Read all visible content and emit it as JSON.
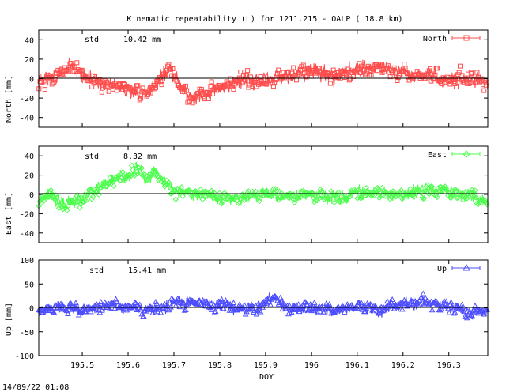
{
  "title": "Kinematic repeatability (L) for 1211.215 - OALP  ( 18.8 km)",
  "timestamp": "14/09/22 01:08",
  "chart_data": [
    {
      "type": "scatter",
      "name": "North",
      "ylabel": "North [mm]",
      "legend": "North",
      "legend_position": "top-right",
      "std_label": "std",
      "std_value": "10.42 mm",
      "color": "#ff4d4d",
      "marker": "square",
      "xlim": [
        195.405,
        196.385
      ],
      "ylim": [
        -50,
        50
      ],
      "yticks": [
        -40,
        -20,
        0,
        20,
        40
      ],
      "std": 10.42,
      "seed": 11,
      "trend": [
        [
          195.405,
          -2
        ],
        [
          195.45,
          5
        ],
        [
          195.48,
          14
        ],
        [
          195.5,
          2
        ],
        [
          195.55,
          -6
        ],
        [
          195.6,
          -12
        ],
        [
          195.63,
          -18
        ],
        [
          195.66,
          -4
        ],
        [
          195.69,
          10
        ],
        [
          195.72,
          -12
        ],
        [
          195.75,
          -20
        ],
        [
          195.8,
          -8
        ],
        [
          195.85,
          0
        ],
        [
          195.9,
          -3
        ],
        [
          195.95,
          5
        ],
        [
          196.0,
          8
        ],
        [
          196.05,
          3
        ],
        [
          196.1,
          10
        ],
        [
          196.15,
          13
        ],
        [
          196.2,
          6
        ],
        [
          196.25,
          4
        ],
        [
          196.3,
          -2
        ],
        [
          196.35,
          2
        ],
        [
          196.385,
          -3
        ]
      ]
    },
    {
      "type": "scatter",
      "name": "East",
      "ylabel": "East [mm]",
      "legend": "East",
      "legend_position": "top-right",
      "std_label": "std",
      "std_value": "8.32 mm",
      "color": "#4dff4d",
      "marker": "diamond",
      "xlim": [
        195.405,
        196.385
      ],
      "ylim": [
        -50,
        50
      ],
      "yticks": [
        -40,
        -20,
        0,
        20,
        40
      ],
      "std": 8.32,
      "seed": 23,
      "trend": [
        [
          195.405,
          -5
        ],
        [
          195.43,
          2
        ],
        [
          195.45,
          -10
        ],
        [
          195.5,
          -5
        ],
        [
          195.53,
          5
        ],
        [
          195.56,
          14
        ],
        [
          195.6,
          18
        ],
        [
          195.62,
          28
        ],
        [
          195.64,
          14
        ],
        [
          195.66,
          24
        ],
        [
          195.68,
          10
        ],
        [
          195.7,
          3
        ],
        [
          195.75,
          2
        ],
        [
          195.8,
          -3
        ],
        [
          195.85,
          -4
        ],
        [
          195.9,
          2
        ],
        [
          195.95,
          -2
        ],
        [
          196.0,
          0
        ],
        [
          196.05,
          -2
        ],
        [
          196.1,
          1
        ],
        [
          196.15,
          2
        ],
        [
          196.2,
          -2
        ],
        [
          196.25,
          6
        ],
        [
          196.3,
          3
        ],
        [
          196.35,
          -1
        ],
        [
          196.385,
          -8
        ]
      ]
    },
    {
      "type": "scatter",
      "name": "Up",
      "ylabel": "Up [mm]",
      "xlabel": "DOY",
      "legend": "Up",
      "legend_position": "top-right",
      "std_label": "std",
      "std_value": "15.41 mm",
      "color": "#4d4dff",
      "marker": "triangle",
      "xlim": [
        195.405,
        196.385
      ],
      "ylim": [
        -100,
        100
      ],
      "yticks": [
        -100,
        -50,
        0,
        50,
        100
      ],
      "xticks": [
        195.5,
        195.6,
        195.7,
        195.8,
        195.9,
        196,
        196.1,
        196.2,
        196.3
      ],
      "std": 15.41,
      "seed": 37,
      "trend": [
        [
          195.405,
          -8
        ],
        [
          195.45,
          2
        ],
        [
          195.5,
          -5
        ],
        [
          195.55,
          5
        ],
        [
          195.6,
          2
        ],
        [
          195.65,
          -5
        ],
        [
          195.7,
          10
        ],
        [
          195.75,
          12
        ],
        [
          195.8,
          5
        ],
        [
          195.85,
          -2
        ],
        [
          195.9,
          8
        ],
        [
          195.92,
          25
        ],
        [
          195.95,
          0
        ],
        [
          196.0,
          2
        ],
        [
          196.05,
          -5
        ],
        [
          196.1,
          0
        ],
        [
          196.15,
          -2
        ],
        [
          196.2,
          8
        ],
        [
          196.25,
          12
        ],
        [
          196.3,
          5
        ],
        [
          196.35,
          -8
        ],
        [
          196.385,
          -5
        ]
      ]
    }
  ]
}
